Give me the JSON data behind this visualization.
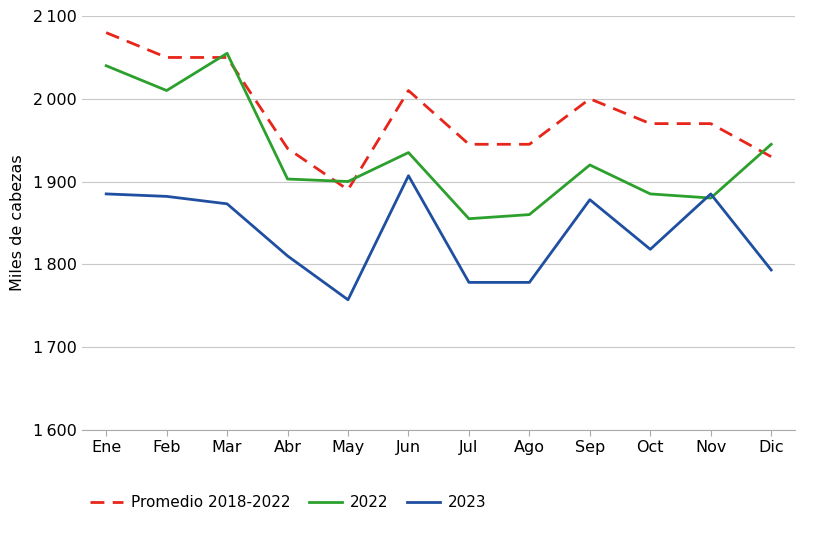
{
  "months": [
    "Ene",
    "Feb",
    "Mar",
    "Abr",
    "May",
    "Jun",
    "Jul",
    "Ago",
    "Sep",
    "Oct",
    "Nov",
    "Dic"
  ],
  "promedio": [
    2080,
    2050,
    2050,
    1940,
    1890,
    2010,
    1945,
    1945,
    2000,
    1970,
    1970,
    1930
  ],
  "y2022": [
    2040,
    2010,
    2055,
    1903,
    1900,
    1935,
    1855,
    1860,
    1920,
    1885,
    1880,
    1945
  ],
  "y2023": [
    1885,
    1882,
    1873,
    1810,
    1757,
    1907,
    1778,
    1778,
    1878,
    1818,
    1885,
    1793
  ],
  "ylim": [
    1600,
    2100
  ],
  "yticks": [
    1600,
    1700,
    1800,
    1900,
    2000,
    2100
  ],
  "ylabel": "Miles de cabezas",
  "color_promedio": "#e8251a",
  "color_2022": "#2ca02c",
  "color_2023": "#1f4fa0",
  "legend_labels": [
    "Promedio 2018-2022",
    "2022",
    "2023"
  ],
  "bg_color": "#ffffff",
  "grid_color": "#c8c8c8",
  "line_width": 2.0,
  "figsize": [
    8.2,
    5.37
  ],
  "dpi": 100
}
